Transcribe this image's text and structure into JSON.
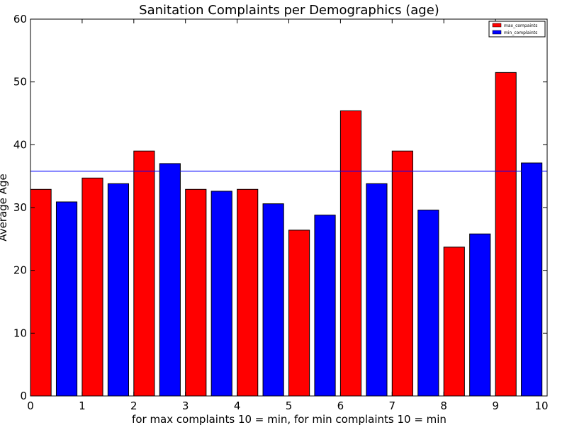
{
  "chart_data": {
    "type": "bar",
    "title": "Sanitation Complaints per Demographics (age)",
    "xlabel": "for max complaints 10 = min, for min complaints 10 = min",
    "ylabel": "Average Age",
    "xlim": [
      0,
      10
    ],
    "ylim": [
      0,
      60
    ],
    "xticks": [
      "0",
      "1",
      "2",
      "3",
      "4",
      "5",
      "6",
      "7",
      "8",
      "9",
      "10"
    ],
    "yticks": [
      "0",
      "10",
      "20",
      "30",
      "40",
      "50",
      "60"
    ],
    "grid": false,
    "legend_position": "top-right",
    "reference_line": {
      "y": 35.8,
      "color": "#0000ff"
    },
    "series": [
      {
        "name": "max_compaints",
        "color": "#ff0000",
        "x": [
          0,
          1,
          2,
          3,
          4,
          5,
          6,
          7,
          8,
          9
        ],
        "values": [
          32.9,
          34.7,
          39.0,
          32.9,
          32.9,
          26.4,
          45.4,
          39.0,
          23.7,
          51.5
        ]
      },
      {
        "name": "min_complaints",
        "color": "#0000ff",
        "x": [
          0.5,
          1.5,
          2.5,
          3.5,
          4.5,
          5.5,
          6.5,
          7.5,
          8.5,
          9.5
        ],
        "values": [
          30.9,
          33.8,
          37.0,
          32.6,
          30.6,
          28.8,
          33.8,
          29.6,
          25.8,
          37.1
        ]
      }
    ]
  }
}
